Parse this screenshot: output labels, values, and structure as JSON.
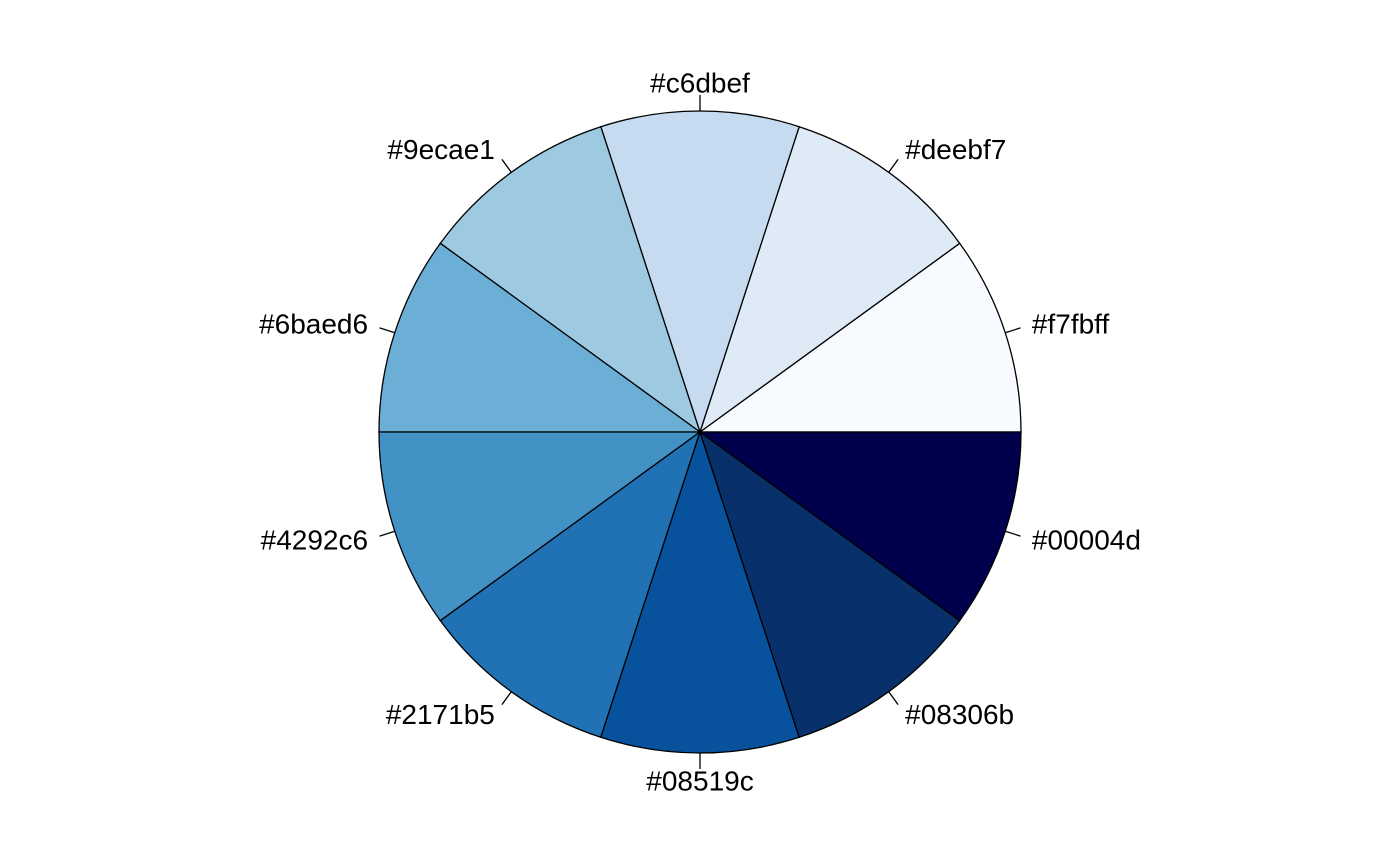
{
  "chart_data": {
    "type": "pie",
    "start_angle_deg": 0,
    "direction": "counterclockwise",
    "slices": [
      {
        "label": "#f7fbff",
        "value": 1,
        "color": "#f7fbff"
      },
      {
        "label": "#deebf7",
        "value": 1,
        "color": "#deebf7"
      },
      {
        "label": "#c6dbef",
        "value": 1,
        "color": "#c6dbef"
      },
      {
        "label": "#9ecae1",
        "value": 1,
        "color": "#9ecae1"
      },
      {
        "label": "#6baed6",
        "value": 1,
        "color": "#6baed6"
      },
      {
        "label": "#4292c6",
        "value": 1,
        "color": "#4292c6"
      },
      {
        "label": "#2171b5",
        "value": 1,
        "color": "#2171b5"
      },
      {
        "label": "#08519c",
        "value": 1,
        "color": "#08519c"
      },
      {
        "label": "#08306b",
        "value": 1,
        "color": "#08306b"
      },
      {
        "label": "#00004d",
        "value": 1,
        "color": "#00004d"
      }
    ]
  }
}
